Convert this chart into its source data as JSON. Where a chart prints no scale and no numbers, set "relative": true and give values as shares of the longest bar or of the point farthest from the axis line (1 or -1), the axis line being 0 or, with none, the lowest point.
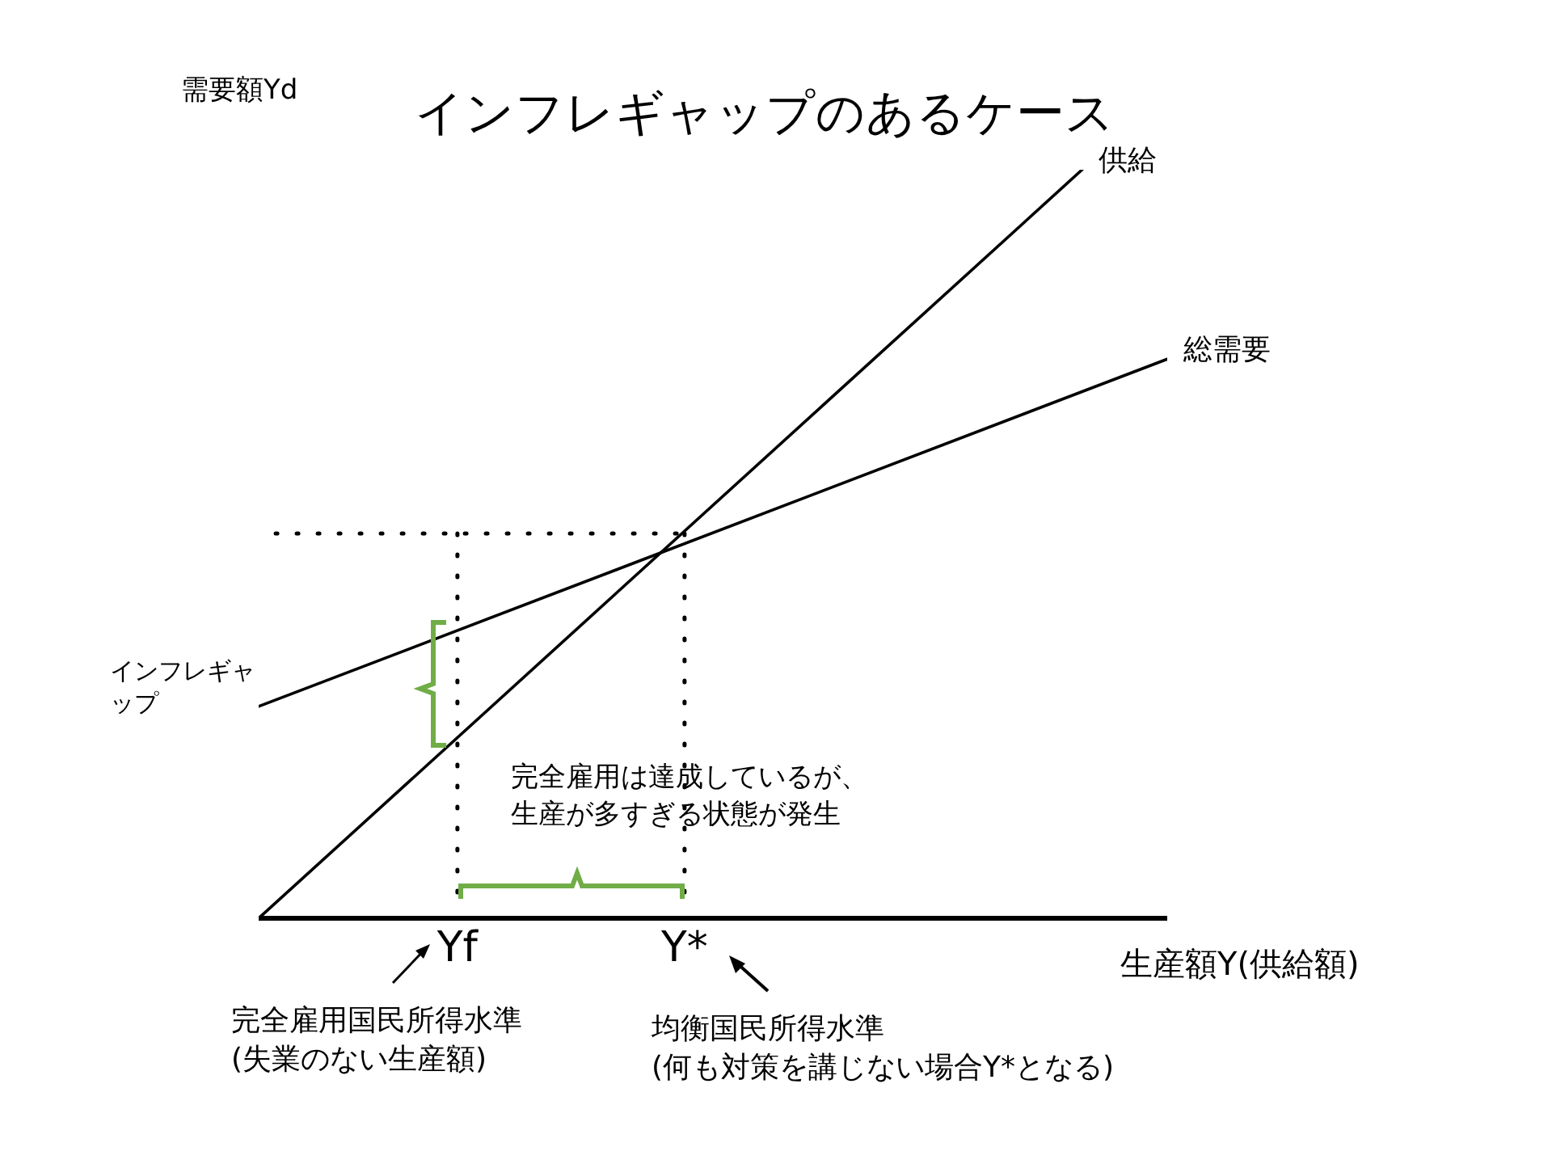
{
  "chart_data": {
    "type": "line",
    "title": "インフレギャップのあるケース",
    "xlabel": "生産額Y(供給額)",
    "ylabel": "需要額Yd",
    "relative": true,
    "marker": "none",
    "categories": [
      null,
      null,
      null,
      null,
      null,
      null,
      null,
      "Yf",
      null,
      null,
      null,
      null,
      null,
      null,
      null,
      "Y*",
      null,
      null,
      null,
      null,
      null,
      null,
      null,
      null,
      null,
      null,
      null,
      null,
      null,
      null,
      null,
      null,
      null
    ],
    "series": [
      {
        "name": "供給",
        "color": "#000000",
        "values": [
          0,
          null,
          null,
          null,
          null,
          null,
          null,
          null,
          null,
          null,
          null,
          null,
          null,
          null,
          null,
          null,
          null,
          null,
          null,
          null,
          null,
          null,
          null,
          null,
          null,
          null,
          null,
          null,
          null,
          1,
          null,
          null,
          null
        ]
      },
      {
        "name": "総需要",
        "color": "#000000",
        "values": [
          0.283,
          null,
          null,
          null,
          null,
          null,
          null,
          null,
          null,
          null,
          null,
          null,
          null,
          null,
          null,
          null,
          null,
          null,
          null,
          null,
          null,
          null,
          null,
          null,
          null,
          null,
          null,
          null,
          null,
          null,
          null,
          null,
          0.747
        ]
      }
    ],
    "ref_lines": [
      {
        "axis": "y",
        "value": 0.514,
        "color": "#000000",
        "line_style": "dotted"
      },
      {
        "axis": "x",
        "value": "Yf",
        "color": "#000000",
        "line_style": "dotted"
      },
      {
        "axis": "x",
        "value": "Y*",
        "color": "#000000",
        "line_style": "dotted"
      }
    ],
    "annotations": [
      "インフレギャップ",
      "完全雇用は達成しているが、生産が多すぎる状態が発生",
      "完全雇用国民所得水準\n(失業のない生産額)",
      "均衡国民所得水準\n(何も対策を講じない場合Y*となる)"
    ]
  }
}
